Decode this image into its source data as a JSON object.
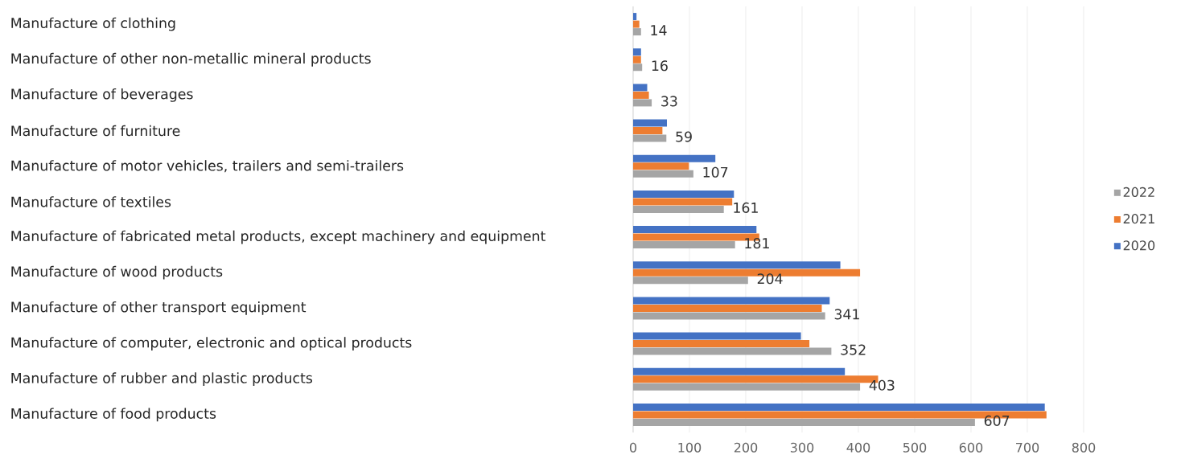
{
  "chart_data": {
    "type": "bar",
    "orientation": "horizontal",
    "categories": [
      "Manufacture of clothing",
      "Manufacture of other non-metallic mineral products",
      "Manufacture of beverages",
      "Manufacture of furniture",
      "Manufacture of motor vehicles, trailers and semi-trailers",
      "Manufacture of textiles",
      "Manufacture of fabricated metal products, except machinery and equipment",
      "Manufacture of wood products",
      "Manufacture of other transport equipment",
      "Manufacture of computer, electronic and optical products",
      "Manufacture of rubber and plastic products",
      "Manufacture of food products"
    ],
    "series": [
      {
        "name": "2020",
        "color": "#4472c4",
        "values": [
          6,
          14,
          25,
          60,
          146,
          179,
          219,
          368,
          349,
          298,
          376,
          731
        ]
      },
      {
        "name": "2021",
        "color": "#ed7d31",
        "values": [
          11,
          14,
          28,
          52,
          99,
          176,
          224,
          403,
          335,
          313,
          435,
          734
        ]
      },
      {
        "name": "2022",
        "color": "#a5a5a5",
        "values": [
          14,
          16,
          33,
          59,
          107,
          161,
          181,
          204,
          341,
          352,
          403,
          607
        ],
        "value_labels": [
          "14",
          "16",
          "33",
          "59",
          "107",
          "161",
          "181",
          "204",
          "341",
          "352",
          "403",
          "607"
        ]
      }
    ],
    "xlim": [
      0,
      800
    ],
    "xticks": [
      0,
      100,
      200,
      300,
      400,
      500,
      600,
      700,
      800
    ],
    "grid": "x",
    "legend": "right"
  }
}
